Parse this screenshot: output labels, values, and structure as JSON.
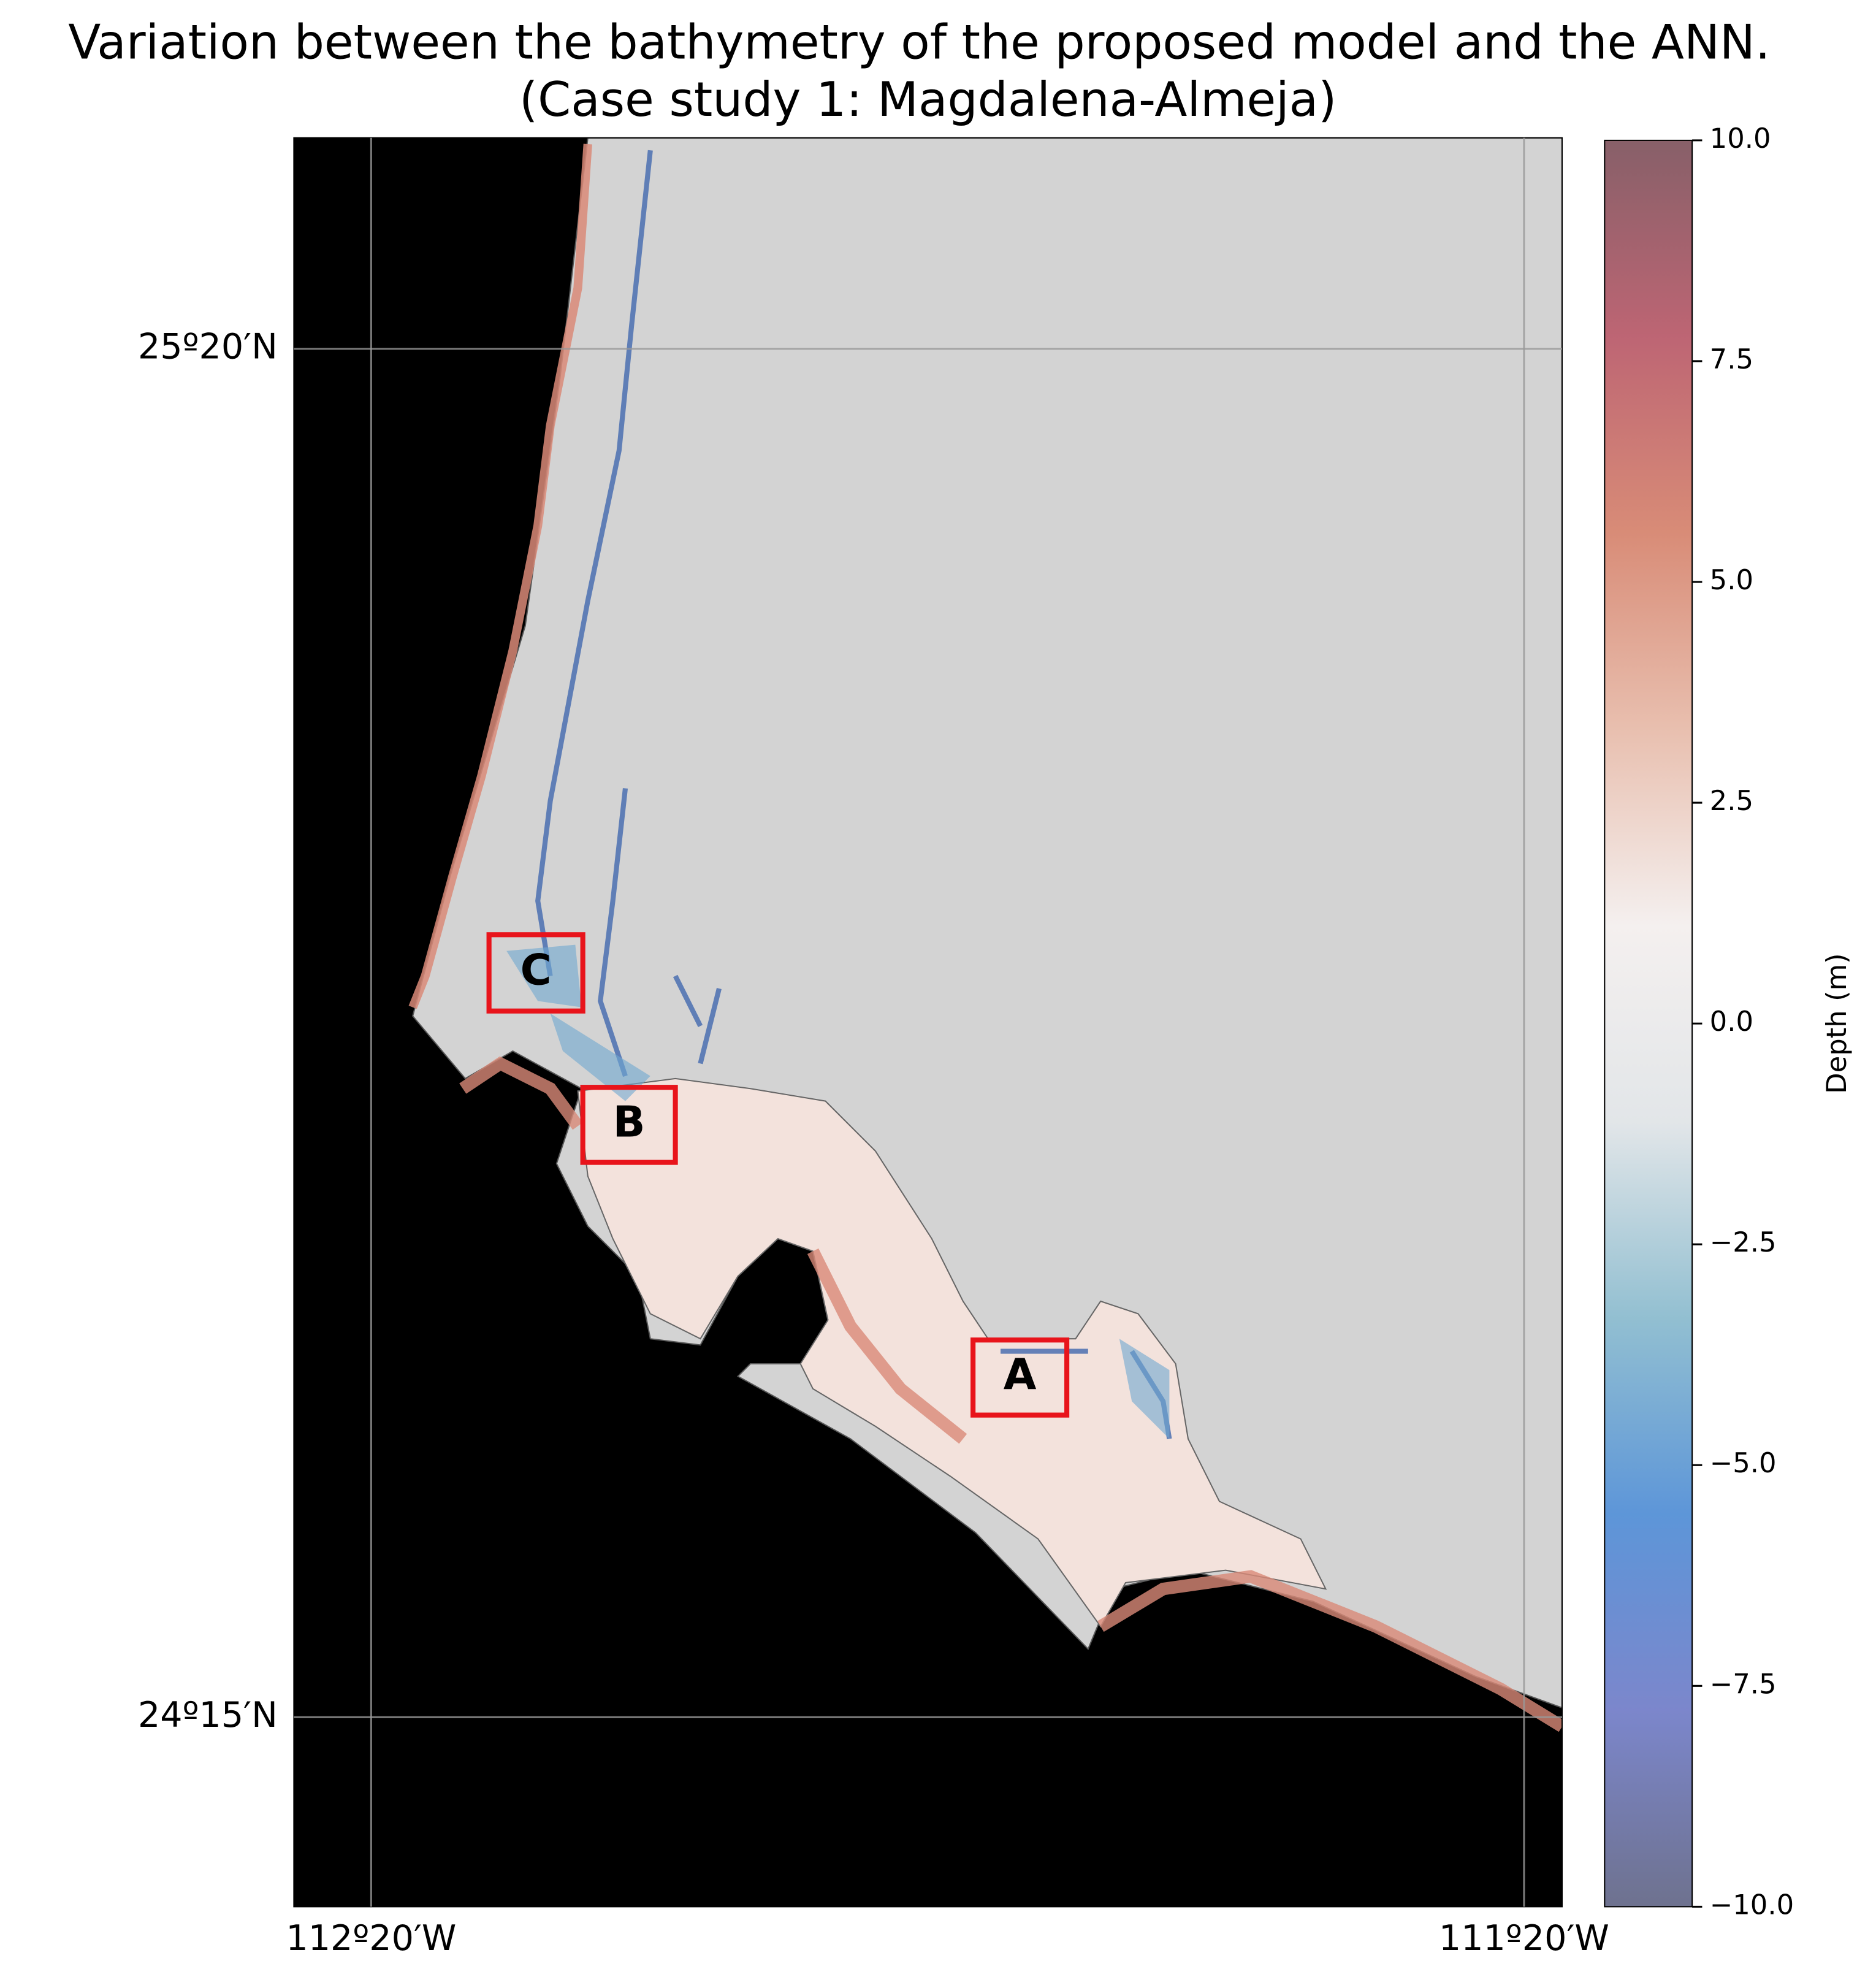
{
  "chart_data": {
    "type": "map",
    "title": "Variation between the bathymetry of the proposed model and the ANN.",
    "subtitle": "(Case study 1: Magdalena-Almeja)",
    "xlim": [
      -112.4,
      -111.3
    ],
    "ylim": [
      24.1,
      25.5
    ],
    "xticks": [
      {
        "value": -112.333,
        "label": "112º20′W"
      },
      {
        "value": -111.333,
        "label": "111º20′W"
      }
    ],
    "yticks": [
      {
        "value": 25.333,
        "label": "25º20′N"
      },
      {
        "value": 24.25,
        "label": "24º15′N"
      }
    ],
    "grid": true,
    "colorbar": {
      "label": "Depth (m)",
      "lim": [
        -10,
        10
      ],
      "ticks": [
        {
          "value": 10,
          "label": "10.0"
        },
        7.5,
        {
          "value": 5,
          "label": "5.0"
        },
        2.5,
        {
          "value": 0,
          "label": "0.0"
        },
        {
          "value": -2.5,
          "label": "−2.5"
        },
        {
          "value": -5,
          "label": "−5.0"
        },
        {
          "value": -7.5,
          "label": "−7.5"
        },
        {
          "value": -10,
          "label": "−10.0"
        }
      ],
      "colormap": [
        "#5e6282",
        "#6d79c6",
        "#4b8ad4",
        "#86b8cc",
        "#dfe3e6",
        "#f3eeed",
        "#e6b8a6",
        "#d47f68",
        "#b65464",
        "#7a4e58"
      ]
    },
    "annotations": [
      "A",
      "B",
      "C"
    ]
  }
}
